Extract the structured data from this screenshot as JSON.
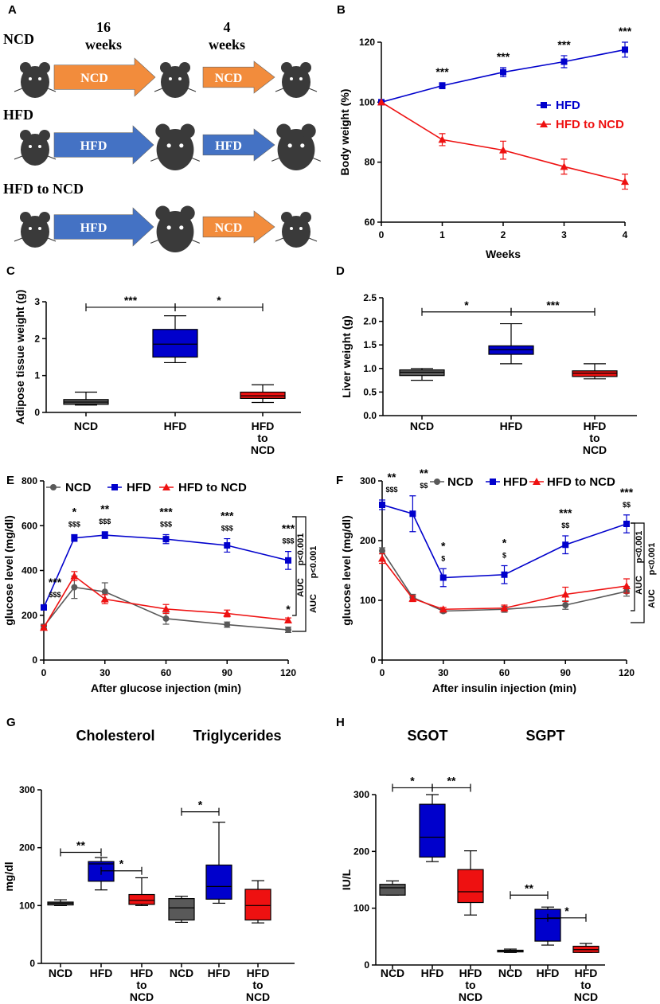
{
  "colors": {
    "ncd": "#595959",
    "hfd": "#0000cc",
    "hfd_to_ncd": "#ee1111",
    "arrow_ncd": "#f28c3c",
    "arrow_hfd": "#4472c4",
    "mouse": "#3a3a3a"
  },
  "panelA": {
    "label": "A",
    "rows": [
      {
        "name": "NCD",
        "arrows": [
          "NCD",
          "NCD"
        ]
      },
      {
        "name": "HFD",
        "arrows": [
          "HFD",
          "HFD"
        ]
      },
      {
        "name": "HFD to NCD",
        "arrows": [
          "HFD",
          "NCD"
        ]
      }
    ],
    "dur1_num": "16",
    "dur1_unit": "weeks",
    "dur2_num": "4",
    "dur2_unit": "weeks"
  },
  "chart_data": [
    {
      "panel": "B",
      "type": "line",
      "xlabel": "Weeks",
      "ylabel": "Body weight (%)",
      "xlim": [
        0,
        4
      ],
      "ylim": [
        60,
        120
      ],
      "xticks": [
        "0",
        "1",
        "2",
        "3",
        "4"
      ],
      "yticks": [
        "60",
        "80",
        "100",
        "120"
      ],
      "series": [
        {
          "name": "HFD",
          "color": "#0000cc",
          "marker": "square",
          "x": [
            0,
            1,
            2,
            3,
            4
          ],
          "y": [
            100,
            105.5,
            110,
            113.5,
            117.5
          ],
          "err": [
            0,
            1,
            1.5,
            2,
            2.5
          ],
          "sig": [
            "",
            "***",
            "***",
            "***",
            "***"
          ]
        },
        {
          "name": "HFD to NCD",
          "color": "#ee1111",
          "marker": "triangle",
          "x": [
            0,
            1,
            2,
            3,
            4
          ],
          "y": [
            100,
            87.5,
            84,
            78.5,
            73.5
          ],
          "err": [
            0,
            2,
            3,
            2.5,
            2.5
          ],
          "sig": [
            "",
            "",
            "",
            "",
            ""
          ]
        }
      ]
    },
    {
      "panel": "C",
      "type": "box",
      "ylabel": "Adipose tissue weight (g)",
      "ylim": [
        0,
        3
      ],
      "yticks": [
        "0",
        "1",
        "2",
        "3"
      ],
      "categories": [
        "NCD",
        "HFD",
        "HFD to NCD"
      ],
      "boxes": [
        {
          "name": "NCD",
          "min": 0.2,
          "q1": 0.22,
          "median": 0.28,
          "q3": 0.35,
          "max": 0.55,
          "color": "#595959"
        },
        {
          "name": "HFD",
          "min": 1.35,
          "q1": 1.5,
          "median": 1.85,
          "q3": 2.25,
          "max": 2.62,
          "color": "#0000cc"
        },
        {
          "name": "HFD to NCD",
          "min": 0.27,
          "q1": 0.38,
          "median": 0.45,
          "q3": 0.55,
          "max": 0.75,
          "color": "#ee1111"
        }
      ],
      "brackets": [
        {
          "from": 0,
          "to": 1,
          "y": 2.85,
          "label": "***"
        },
        {
          "from": 1,
          "to": 2,
          "y": 2.85,
          "label": "*"
        }
      ]
    },
    {
      "panel": "D",
      "type": "box",
      "ylabel": "Liver weight (g)",
      "ylim": [
        0,
        2.5
      ],
      "yticks": [
        "0.0",
        "0.5",
        "1.0",
        "1.5",
        "2.0",
        "2.5"
      ],
      "categories": [
        "NCD",
        "HFD",
        "HFD to NCD"
      ],
      "boxes": [
        {
          "name": "NCD",
          "min": 0.75,
          "q1": 0.85,
          "median": 0.92,
          "q3": 0.97,
          "max": 1.0,
          "color": "#595959"
        },
        {
          "name": "HFD",
          "min": 1.1,
          "q1": 1.3,
          "median": 1.4,
          "q3": 1.48,
          "max": 1.95,
          "color": "#0000cc"
        },
        {
          "name": "HFD to NCD",
          "min": 0.78,
          "q1": 0.83,
          "median": 0.9,
          "q3": 0.95,
          "max": 1.1,
          "color": "#ee1111"
        }
      ],
      "brackets": [
        {
          "from": 0,
          "to": 1,
          "y": 2.2,
          "label": "*"
        },
        {
          "from": 1,
          "to": 2,
          "y": 2.2,
          "label": "***"
        }
      ]
    },
    {
      "panel": "E",
      "type": "line",
      "xlabel": "After glucose injection (min)",
      "ylabel": "glucose level (mg/dl)",
      "xlim": [
        0,
        120
      ],
      "ylim": [
        0,
        800
      ],
      "xticks": [
        "0",
        "30",
        "60",
        "90",
        "120"
      ],
      "yticks": [
        "0",
        "200",
        "400",
        "600",
        "800"
      ],
      "legend": [
        "NCD",
        "HFD",
        "HFD to NCD"
      ],
      "series": [
        {
          "name": "NCD",
          "color": "#595959",
          "marker": "circle",
          "x": [
            0,
            15,
            30,
            60,
            90,
            120
          ],
          "y": [
            150,
            325,
            305,
            185,
            158,
            135
          ],
          "err": [
            10,
            50,
            40,
            25,
            12,
            12
          ]
        },
        {
          "name": "HFD",
          "color": "#0000cc",
          "marker": "square",
          "x": [
            0,
            15,
            30,
            60,
            90,
            120
          ],
          "y": [
            235,
            545,
            558,
            540,
            512,
            445
          ],
          "err": [
            10,
            15,
            15,
            20,
            30,
            40
          ]
        },
        {
          "name": "HFD to NCD",
          "color": "#ee1111",
          "marker": "triangle",
          "x": [
            0,
            15,
            30,
            60,
            90,
            120
          ],
          "y": [
            145,
            375,
            272,
            228,
            208,
            178
          ],
          "err": [
            10,
            20,
            20,
            20,
            15,
            10
          ]
        }
      ],
      "sig_star": [
        "***",
        "*",
        "**",
        "***",
        "***",
        "***"
      ],
      "sig_dollar": [
        "$$$",
        "$$$",
        "$$$",
        "$$$",
        "$$$",
        "$$$"
      ],
      "sig_red_120": "*",
      "auc": [
        "AUC",
        "p<0.001",
        "AUC",
        "p<0.001"
      ]
    },
    {
      "panel": "F",
      "type": "line",
      "xlabel": "After insulin injection (min)",
      "ylabel": "glucose level (mg/dl)",
      "xlim": [
        0,
        120
      ],
      "ylim": [
        0,
        300
      ],
      "xticks": [
        "0",
        "30",
        "60",
        "90",
        "120"
      ],
      "yticks": [
        "0",
        "100",
        "200",
        "300"
      ],
      "legend": [
        "NCD",
        "HFD",
        "HFD to NCD"
      ],
      "series": [
        {
          "name": "NCD",
          "color": "#595959",
          "marker": "circle",
          "x": [
            0,
            15,
            30,
            60,
            90,
            120
          ],
          "y": [
            183,
            105,
            82,
            85,
            92,
            115
          ],
          "err": [
            5,
            5,
            3,
            5,
            7,
            8
          ]
        },
        {
          "name": "HFD",
          "color": "#0000cc",
          "marker": "square",
          "x": [
            0,
            15,
            30,
            60,
            90,
            120
          ],
          "y": [
            260,
            245,
            138,
            143,
            193,
            228
          ],
          "err": [
            8,
            30,
            15,
            15,
            15,
            15
          ]
        },
        {
          "name": "HFD to NCD",
          "color": "#ee1111",
          "marker": "triangle",
          "x": [
            0,
            15,
            30,
            60,
            90,
            120
          ],
          "y": [
            170,
            103,
            85,
            87,
            110,
            124
          ],
          "err": [
            8,
            5,
            3,
            5,
            12,
            12
          ]
        }
      ],
      "sig_star": [
        "**",
        "**",
        "*",
        "*",
        "***",
        "***"
      ],
      "sig_dollar": [
        "$$$",
        "$$",
        "$",
        "$",
        "$$",
        "$$"
      ],
      "auc": [
        "AUC",
        "p<0.001",
        "AUC",
        "p<0.001"
      ]
    },
    {
      "panel": "G",
      "type": "box",
      "ylabel": "mg/dl",
      "ylim": [
        0,
        300
      ],
      "yticks": [
        "0",
        "100",
        "200",
        "300"
      ],
      "group_titles": [
        "Cholesterol",
        "Triglycerides"
      ],
      "categories": [
        "NCD",
        "HFD",
        "HFD to NCD",
        "NCD",
        "HFD",
        "HFD to NCD"
      ],
      "boxes": [
        {
          "name": "NCD",
          "min": 100,
          "q1": 101,
          "median": 104,
          "q3": 106,
          "max": 110,
          "color": "#595959"
        },
        {
          "name": "HFD",
          "min": 127,
          "q1": 142,
          "median": 172,
          "q3": 176,
          "max": 183,
          "color": "#0000cc"
        },
        {
          "name": "HFD to NCD",
          "min": 100,
          "q1": 102,
          "median": 109,
          "q3": 119,
          "max": 148,
          "color": "#ee1111"
        },
        {
          "name": "NCD",
          "min": 71,
          "q1": 75,
          "median": 96,
          "q3": 112,
          "max": 116,
          "color": "#595959"
        },
        {
          "name": "HFD",
          "min": 104,
          "q1": 111,
          "median": 133,
          "q3": 170,
          "max": 244,
          "color": "#0000cc"
        },
        {
          "name": "HFD to NCD",
          "min": 70,
          "q1": 75,
          "median": 100,
          "q3": 128,
          "max": 143,
          "color": "#ee1111"
        }
      ],
      "brackets": [
        {
          "from": 0,
          "to": 1,
          "y": 192,
          "label": "**"
        },
        {
          "from": 1,
          "to": 2,
          "y": 160,
          "label": "*"
        },
        {
          "from": 3,
          "to": 4,
          "y": 262,
          "label": "*"
        }
      ]
    },
    {
      "panel": "H",
      "type": "box",
      "ylabel": "IU/L",
      "ylim": [
        0,
        300
      ],
      "yticks": [
        "0",
        "100",
        "200",
        "300"
      ],
      "group_titles": [
        "SGOT",
        "SGPT"
      ],
      "categories": [
        "NCD",
        "HFD",
        "HFD to NCD",
        "NCD",
        "HFD",
        "HFD to NCD"
      ],
      "boxes": [
        {
          "name": "NCD",
          "min": 123,
          "q1": 123,
          "median": 136,
          "q3": 142,
          "max": 148,
          "color": "#595959"
        },
        {
          "name": "HFD",
          "min": 182,
          "q1": 190,
          "median": 225,
          "q3": 283,
          "max": 300,
          "color": "#0000cc"
        },
        {
          "name": "HFD to NCD",
          "min": 88,
          "q1": 110,
          "median": 129,
          "q3": 168,
          "max": 201,
          "color": "#ee1111"
        },
        {
          "name": "NCD",
          "min": 22,
          "q1": 23,
          "median": 25,
          "q3": 26,
          "max": 28,
          "color": "#595959"
        },
        {
          "name": "HFD",
          "min": 35,
          "q1": 42,
          "median": 82,
          "q3": 98,
          "max": 102,
          "color": "#0000cc"
        },
        {
          "name": "HFD to NCD",
          "min": 22,
          "q1": 22,
          "median": 27,
          "q3": 33,
          "max": 38,
          "color": "#ee1111"
        }
      ],
      "brackets": [
        {
          "from": 0,
          "to": 1,
          "y": 312,
          "label": "*"
        },
        {
          "from": 1,
          "to": 2,
          "y": 312,
          "label": "**"
        },
        {
          "from": 3,
          "to": 4,
          "y": 123,
          "label": "**"
        },
        {
          "from": 4,
          "to": 5,
          "y": 83,
          "label": "*"
        }
      ]
    }
  ]
}
